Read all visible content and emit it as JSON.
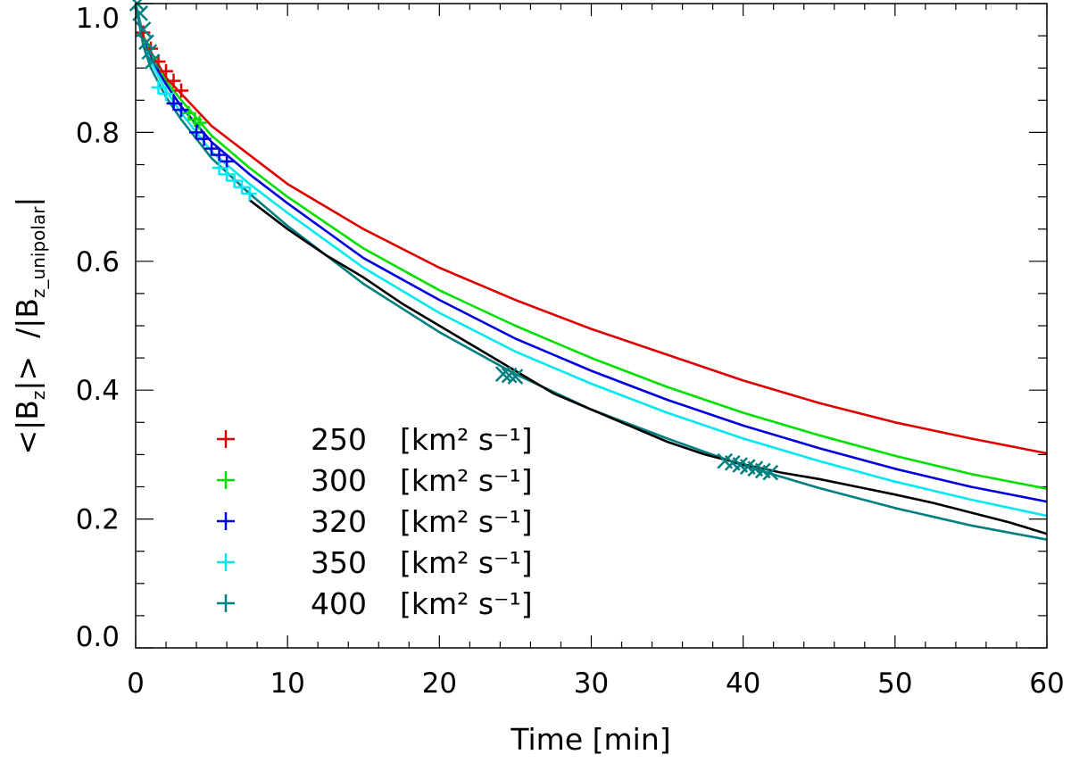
{
  "chart_data": {
    "type": "line",
    "title": "",
    "xlabel": "Time [min]",
    "ylabel_parts": [
      "<|B",
      "z",
      "|>",
      "/|B",
      "z_unipolar",
      "|"
    ],
    "xlim": [
      0,
      60
    ],
    "ylim": [
      0,
      1.0
    ],
    "xticks": [
      0,
      10,
      20,
      30,
      40,
      50,
      60
    ],
    "xtick_labels": [
      "0",
      "10",
      "20",
      "30",
      "40",
      "50",
      "60"
    ],
    "yticks": [
      0.0,
      0.2,
      0.4,
      0.6,
      0.8,
      1.0
    ],
    "ytick_labels": [
      "0.0",
      "0.2",
      "0.4",
      "0.6",
      "0.8",
      "1.0"
    ],
    "series": [
      {
        "name": "250",
        "unit": "[km² s⁻¹]",
        "color": "#e00000",
        "x": [
          0,
          0.5,
          1,
          2,
          3,
          5,
          7.5,
          10,
          15,
          20,
          25,
          30,
          35,
          40,
          45,
          50,
          55,
          60
        ],
        "y": [
          1.0,
          0.95,
          0.925,
          0.885,
          0.86,
          0.81,
          0.765,
          0.72,
          0.65,
          0.59,
          0.54,
          0.495,
          0.455,
          0.415,
          0.38,
          0.35,
          0.325,
          0.302
        ]
      },
      {
        "name": "300",
        "unit": "[km² s⁻¹]",
        "color": "#00e000",
        "x": [
          0,
          0.5,
          1,
          2,
          3,
          5,
          7.5,
          10,
          15,
          20,
          25,
          30,
          35,
          40,
          45,
          50,
          55,
          60
        ],
        "y": [
          1.0,
          0.95,
          0.92,
          0.88,
          0.85,
          0.795,
          0.745,
          0.7,
          0.62,
          0.555,
          0.5,
          0.45,
          0.405,
          0.365,
          0.33,
          0.298,
          0.27,
          0.247
        ]
      },
      {
        "name": "320",
        "unit": "[km² s⁻¹]",
        "color": "#0000e0",
        "x": [
          0,
          0.5,
          1,
          2,
          3,
          5,
          7.5,
          10,
          15,
          20,
          25,
          30,
          35,
          40,
          45,
          50,
          55,
          60
        ],
        "y": [
          1.0,
          0.945,
          0.915,
          0.875,
          0.84,
          0.785,
          0.735,
          0.69,
          0.605,
          0.54,
          0.48,
          0.43,
          0.385,
          0.345,
          0.31,
          0.278,
          0.25,
          0.227
        ]
      },
      {
        "name": "350",
        "unit": "[km² s⁻¹]",
        "color": "#00e8f0",
        "x": [
          0,
          0.5,
          1,
          2,
          3,
          5,
          7.5,
          10,
          15,
          20,
          25,
          30,
          35,
          40,
          45,
          50,
          55,
          60
        ],
        "y": [
          1.0,
          0.94,
          0.91,
          0.865,
          0.83,
          0.77,
          0.72,
          0.675,
          0.59,
          0.52,
          0.46,
          0.41,
          0.365,
          0.325,
          0.29,
          0.258,
          0.23,
          0.205
        ]
      },
      {
        "name": "400",
        "unit": "[km² s⁻¹]",
        "color": "#008080",
        "x": [
          0,
          0.5,
          1,
          2,
          3,
          5,
          7.5,
          10,
          15,
          20,
          25,
          30,
          35,
          40,
          45,
          50,
          55,
          60
        ],
        "y": [
          1.0,
          0.935,
          0.9,
          0.855,
          0.82,
          0.76,
          0.705,
          0.655,
          0.565,
          0.49,
          0.425,
          0.37,
          0.325,
          0.283,
          0.248,
          0.217,
          0.19,
          0.168
        ]
      },
      {
        "name": "observed",
        "color": "#000000",
        "legend": false,
        "x": [
          7.5,
          10,
          12.5,
          15,
          17.5,
          20,
          22.5,
          25,
          27.5,
          30,
          32.5,
          35,
          37.5,
          40,
          42.5,
          45,
          47.5,
          50,
          52.5,
          55,
          57.5,
          60
        ],
        "y": [
          0.695,
          0.65,
          0.61,
          0.575,
          0.535,
          0.5,
          0.465,
          0.43,
          0.395,
          0.37,
          0.345,
          0.32,
          0.3,
          0.285,
          0.272,
          0.262,
          0.25,
          0.238,
          0.225,
          0.21,
          0.195,
          0.177
        ]
      }
    ],
    "markers": [
      {
        "color": "#e00000",
        "shape": "plus",
        "x": [
          0.5,
          1.0,
          1.5,
          2.0,
          2.5,
          3.0
        ],
        "y": [
          0.955,
          0.93,
          0.91,
          0.895,
          0.88,
          0.865
        ]
      },
      {
        "color": "#00e000",
        "shape": "plus",
        "x": [
          3.5,
          3.9,
          4.2
        ],
        "y": [
          0.83,
          0.82,
          0.815
        ]
      },
      {
        "color": "#0000e0",
        "shape": "plus",
        "x": [
          2.5,
          3.0,
          4.0,
          4.5,
          5.0,
          5.5,
          6.0
        ],
        "y": [
          0.845,
          0.835,
          0.8,
          0.79,
          0.775,
          0.765,
          0.755
        ]
      },
      {
        "color": "#00e8f0",
        "shape": "plus",
        "x": [
          1.5,
          2.0,
          5.5,
          6.0,
          6.5,
          7.0,
          7.5
        ],
        "y": [
          0.87,
          0.86,
          0.745,
          0.735,
          0.725,
          0.715,
          0.705
        ]
      },
      {
        "color": "#008080",
        "shape": "cross",
        "x": [
          0.1,
          0.3,
          0.5,
          0.7,
          0.9,
          1.1,
          24.2,
          24.6,
          25.0,
          38.8,
          39.3,
          39.8,
          40.3,
          40.8,
          41.3,
          41.8
        ],
        "y": [
          1.0,
          0.985,
          0.96,
          0.94,
          0.925,
          0.91,
          0.425,
          0.423,
          0.421,
          0.29,
          0.287,
          0.284,
          0.281,
          0.278,
          0.275,
          0.272
        ]
      }
    ],
    "legend": {
      "placement": "bottom-left",
      "marker": "+"
    }
  }
}
